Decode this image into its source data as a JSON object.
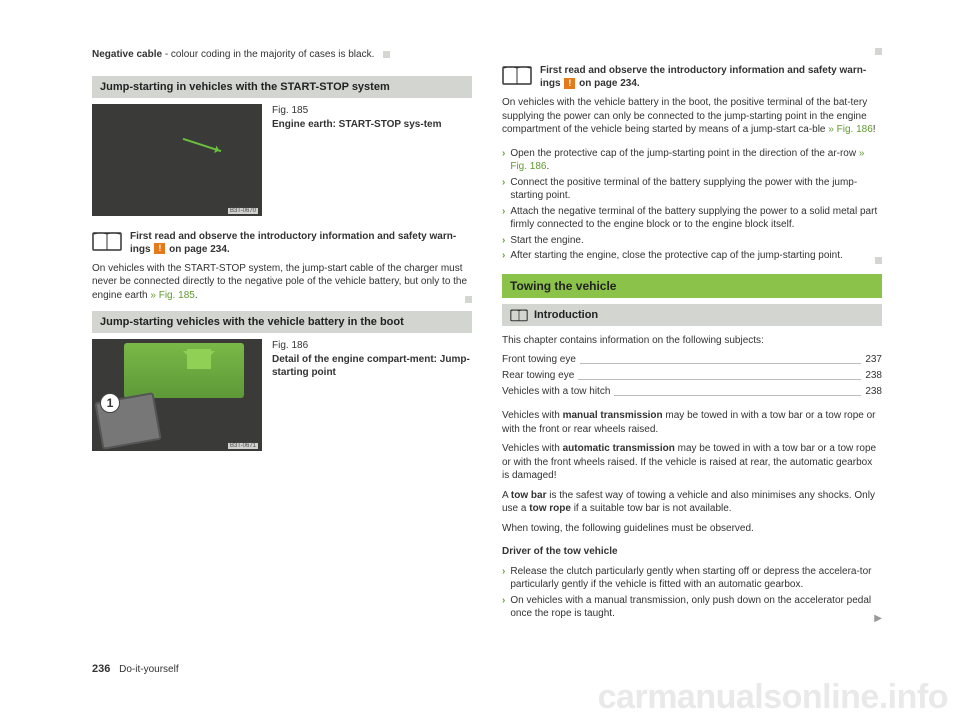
{
  "left": {
    "neg_cable_label": "Negative cable",
    "neg_cable_rest": " - colour coding in the majority of cases is black.",
    "section1_title": "Jump-starting in vehicles with the START-STOP system",
    "fig185_num": "Fig. 185",
    "fig185_title": "Engine earth: START-STOP sys-tem",
    "fig185_label": "B3T-0670",
    "warn1_pre": "First read and observe the introductory information and safety warn-ings ",
    "warn1_post": " on page 234.",
    "para1_a": "On vehicles with the START-STOP system, the jump-start cable of the charger must never be connected directly to the negative pole of the vehicle battery, but only to the engine earth ",
    "para1_link": "» Fig. 185",
    "section2_title": "Jump-starting vehicles with the vehicle battery in the boot",
    "fig186_num": "Fig. 186",
    "fig186_title": "Detail of the engine compart-ment: Jump-starting point",
    "fig186_label": "B3T-0671",
    "fig186_circle": "1"
  },
  "right": {
    "warn2_pre": "First read and observe the introductory information and safety warn-ings ",
    "warn2_post": " on page 234.",
    "para2_a": "On vehicles with the vehicle battery in the boot, the positive terminal of the bat-tery supplying the power can only be connected to the jump-starting point in the engine compartment of the vehicle being started by means of a jump-start ca-ble ",
    "para2_link": "» Fig. 186",
    "para2_b": "!",
    "bullets": [
      {
        "a": "Open the protective cap of the jump-starting point in the direction of the ar-row ",
        "link": "» Fig. 186",
        "b": "."
      },
      {
        "a": "Connect the positive terminal of the battery supplying the power with the jump-starting point."
      },
      {
        "a": "Attach the negative terminal of the battery supplying the power to a solid metal part firmly connected to the engine block or to the engine block itself."
      },
      {
        "a": "Start the engine."
      },
      {
        "a": "After starting the engine, close the protective cap of the jump-starting point."
      }
    ],
    "towing_title": "Towing the vehicle",
    "intro_label": "Introduction",
    "toc_lead": "This chapter contains information on the following subjects:",
    "toc": [
      {
        "t": "Front towing eye",
        "p": "237"
      },
      {
        "t": "Rear towing eye",
        "p": "238"
      },
      {
        "t": "Vehicles with a tow hitch",
        "p": "238"
      }
    ],
    "p_manual_a": "Vehicles with ",
    "p_manual_b": "manual transmission",
    "p_manual_c": " may be towed in with a tow bar or a tow rope or with the front or rear wheels raised.",
    "p_auto_a": "Vehicles with ",
    "p_auto_b": "automatic transmission",
    "p_auto_c": " may be towed in with a tow bar or a tow rope or with the front wheels raised. If the vehicle is raised at rear, the automatic gearbox is damaged!",
    "p_towbar_a": "A ",
    "p_towbar_b": "tow bar",
    "p_towbar_c": " is the safest way of towing a vehicle and also minimises any shocks. Only use a ",
    "p_towbar_d": "tow rope",
    "p_towbar_e": " if a suitable tow bar is not available.",
    "p_guide": "When towing, the following guidelines must be observed.",
    "driver_head": "Driver of the tow vehicle",
    "driver_bullets": [
      "Release the clutch particularly gently when starting off or depress the accelera-tor particularly gently if the vehicle is fitted with an automatic gearbox.",
      "On vehicles with a manual transmission, only push down on the accelerator pedal once the rope is taught."
    ]
  },
  "footer": {
    "page": "236",
    "section": "Do-it-yourself"
  },
  "watermark": "carmanualsonline.info",
  "warn_badge": "!"
}
